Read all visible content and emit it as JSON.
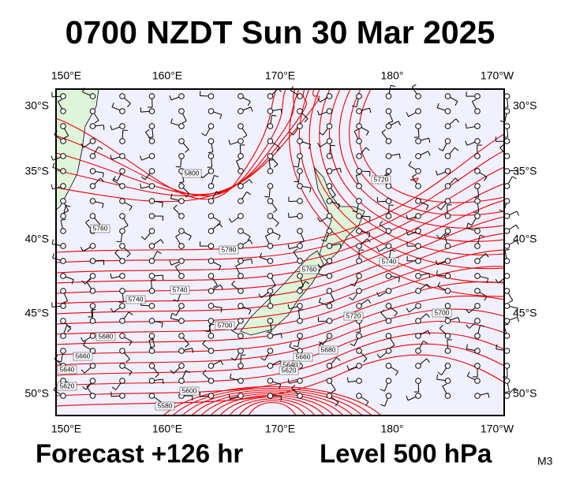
{
  "title": "0700 NZDT Sun 30 Mar 2025",
  "map": {
    "lon_labels": [
      "150°E",
      "160°E",
      "170°E",
      "180°",
      "170°W"
    ],
    "lat_labels": [
      "30°S",
      "35°S",
      "40°S",
      "45°S",
      "50°S"
    ],
    "contour_labels": [
      "5800",
      "5720",
      "5760",
      "5780",
      "5760",
      "5740",
      "5740",
      "5700",
      "5680",
      "5740",
      "5720",
      "5700",
      "5660",
      "5640",
      "5620",
      "5680",
      "5660",
      "5640",
      "5620",
      "5600",
      "5580"
    ]
  },
  "footer": {
    "forecast": "Forecast +126 hr",
    "level": "Level 500 hPa",
    "model": "M3"
  }
}
